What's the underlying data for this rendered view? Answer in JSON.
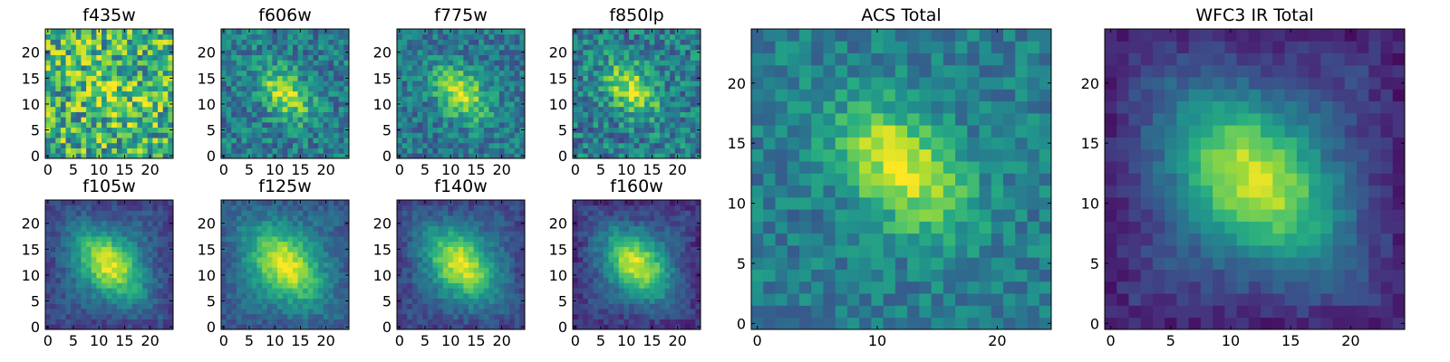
{
  "chart_data": [
    {
      "type": "heatmap",
      "title": "f435w",
      "grid_size": 25,
      "xlim": [
        0,
        24
      ],
      "ylim": [
        0,
        24
      ],
      "x_ticks": [
        0,
        5,
        10,
        15,
        20
      ],
      "y_ticks": [
        0,
        5,
        10,
        15,
        20
      ],
      "colormap": "viridis",
      "peak": [
        12,
        13
      ],
      "signal": 0.18,
      "sigma_major": 4.5,
      "sigma_minor": 3.0,
      "noise": 0.34,
      "background": 0.64,
      "edge_dark": 0.0,
      "seed": 11
    },
    {
      "type": "heatmap",
      "title": "f606w",
      "grid_size": 25,
      "xlim": [
        0,
        24
      ],
      "ylim": [
        0,
        24
      ],
      "x_ticks": [
        0,
        5,
        10,
        15,
        20
      ],
      "y_ticks": [
        0,
        5,
        10,
        15,
        20
      ],
      "colormap": "viridis",
      "peak": [
        12,
        12
      ],
      "signal": 0.5,
      "sigma_major": 4.2,
      "sigma_minor": 2.6,
      "noise": 0.2,
      "background": 0.42,
      "edge_dark": 0.0,
      "seed": 23
    },
    {
      "type": "heatmap",
      "title": "f775w",
      "grid_size": 25,
      "xlim": [
        0,
        24
      ],
      "ylim": [
        0,
        24
      ],
      "x_ticks": [
        0,
        5,
        10,
        15,
        20
      ],
      "y_ticks": [
        0,
        5,
        10,
        15,
        20
      ],
      "colormap": "viridis",
      "peak": [
        12,
        12
      ],
      "signal": 0.52,
      "sigma_major": 4.4,
      "sigma_minor": 2.8,
      "noise": 0.18,
      "background": 0.4,
      "edge_dark": 0.0,
      "seed": 37
    },
    {
      "type": "heatmap",
      "title": "f850lp",
      "grid_size": 25,
      "xlim": [
        0,
        24
      ],
      "ylim": [
        0,
        24
      ],
      "x_ticks": [
        0,
        5,
        10,
        15,
        20
      ],
      "y_ticks": [
        0,
        5,
        10,
        15,
        20
      ],
      "colormap": "viridis",
      "peak": [
        11,
        13
      ],
      "signal": 0.5,
      "sigma_major": 4.3,
      "sigma_minor": 2.7,
      "noise": 0.22,
      "background": 0.42,
      "edge_dark": 0.0,
      "seed": 41
    },
    {
      "type": "heatmap",
      "title": "f105w",
      "grid_size": 25,
      "xlim": [
        0,
        24
      ],
      "ylim": [
        0,
        24
      ],
      "x_ticks": [
        0,
        5,
        10,
        15,
        20
      ],
      "y_ticks": [
        0,
        5,
        10,
        15,
        20
      ],
      "colormap": "viridis",
      "peak": [
        12,
        12
      ],
      "signal": 0.6,
      "sigma_major": 5.2,
      "sigma_minor": 3.4,
      "noise": 0.09,
      "background": 0.36,
      "edge_dark": 0.16,
      "seed": 53
    },
    {
      "type": "heatmap",
      "title": "f125w",
      "grid_size": 25,
      "xlim": [
        0,
        24
      ],
      "ylim": [
        0,
        24
      ],
      "x_ticks": [
        0,
        5,
        10,
        15,
        20
      ],
      "y_ticks": [
        0,
        5,
        10,
        15,
        20
      ],
      "colormap": "viridis",
      "peak": [
        12,
        12
      ],
      "signal": 0.58,
      "sigma_major": 5.6,
      "sigma_minor": 3.8,
      "noise": 0.09,
      "background": 0.4,
      "edge_dark": 0.12,
      "seed": 67
    },
    {
      "type": "heatmap",
      "title": "f140w",
      "grid_size": 25,
      "xlim": [
        0,
        24
      ],
      "ylim": [
        0,
        24
      ],
      "x_ticks": [
        0,
        5,
        10,
        15,
        20
      ],
      "y_ticks": [
        0,
        5,
        10,
        15,
        20
      ],
      "colormap": "viridis",
      "peak": [
        12,
        12
      ],
      "signal": 0.6,
      "sigma_major": 5.4,
      "sigma_minor": 3.6,
      "noise": 0.09,
      "background": 0.36,
      "edge_dark": 0.16,
      "seed": 79
    },
    {
      "type": "heatmap",
      "title": "f160w",
      "grid_size": 25,
      "xlim": [
        0,
        24
      ],
      "ylim": [
        0,
        24
      ],
      "x_ticks": [
        0,
        5,
        10,
        15,
        20
      ],
      "y_ticks": [
        0,
        5,
        10,
        15,
        20
      ],
      "colormap": "viridis",
      "peak": [
        12,
        12
      ],
      "signal": 0.62,
      "sigma_major": 5.0,
      "sigma_minor": 3.3,
      "noise": 0.09,
      "background": 0.34,
      "edge_dark": 0.2,
      "seed": 83
    },
    {
      "type": "heatmap",
      "title": "ACS Total",
      "grid_size": 25,
      "xlim": [
        0,
        24
      ],
      "ylim": [
        0,
        24
      ],
      "x_ticks": [
        0,
        10,
        20
      ],
      "y_ticks": [
        0,
        5,
        10,
        15,
        20
      ],
      "colormap": "viridis",
      "peak": [
        12,
        13
      ],
      "signal": 0.55,
      "sigma_major": 4.4,
      "sigma_minor": 2.8,
      "noise": 0.14,
      "background": 0.42,
      "edge_dark": 0.0,
      "seed": 97
    },
    {
      "type": "heatmap",
      "title": "WFC3 IR Total",
      "grid_size": 25,
      "xlim": [
        0,
        24
      ],
      "ylim": [
        0,
        24
      ],
      "x_ticks": [
        0,
        5,
        10,
        15,
        20
      ],
      "y_ticks": [
        0,
        5,
        10,
        15,
        20
      ],
      "colormap": "viridis",
      "peak": [
        12,
        12
      ],
      "signal": 0.64,
      "sigma_major": 5.4,
      "sigma_minor": 3.6,
      "noise": 0.07,
      "background": 0.3,
      "edge_dark": 0.2,
      "seed": 101
    }
  ]
}
